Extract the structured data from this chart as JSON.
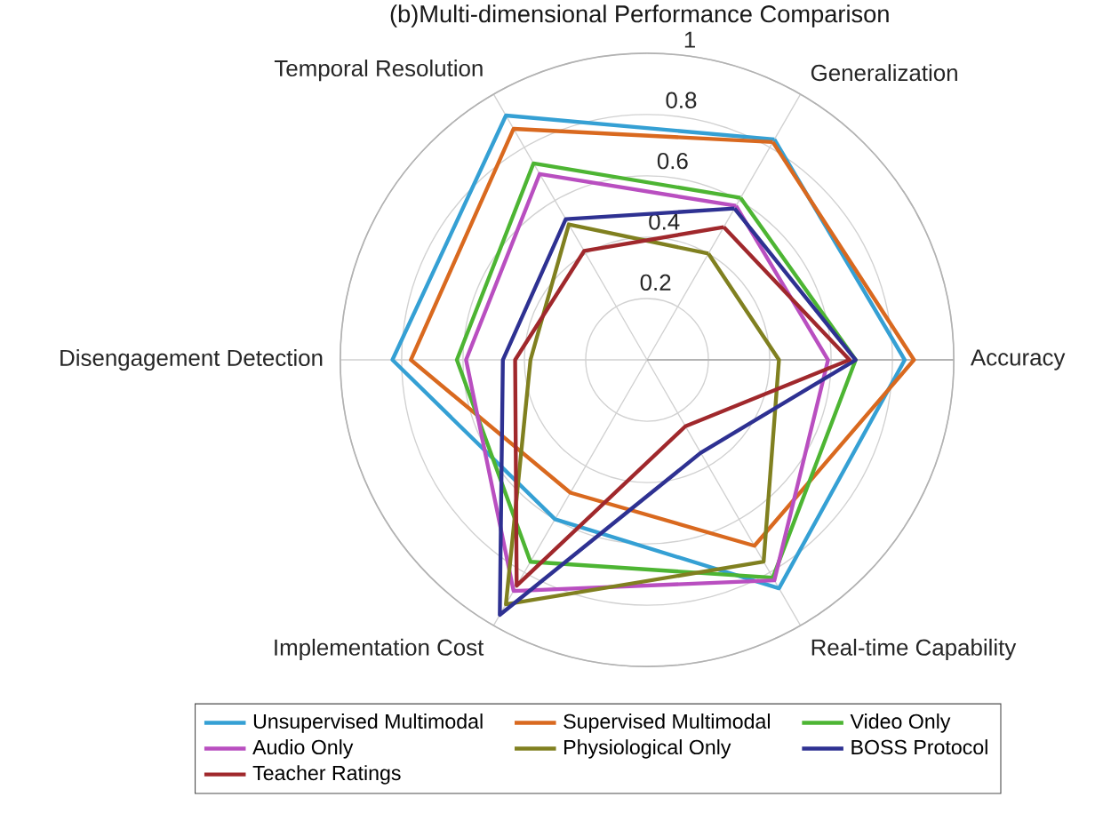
{
  "chart_data": {
    "type": "radar",
    "title": "(b)Multi-dimensional Performance Comparison",
    "categories": [
      "Generalization",
      "Accuracy",
      "Real-time Capability",
      "Implementation Cost",
      "Disengagement Detection",
      "Temporal Resolution"
    ],
    "series": [
      {
        "name": "Unsupervised Multimodal",
        "color": "#35a0d4",
        "values": [
          0.83,
          0.84,
          0.86,
          0.6,
          0.83,
          0.92
        ]
      },
      {
        "name": "Supervised Multimodal",
        "color": "#d9691f",
        "values": [
          0.82,
          0.87,
          0.7,
          0.5,
          0.77,
          0.87
        ]
      },
      {
        "name": "Video Only",
        "color": "#4db533",
        "values": [
          0.61,
          0.68,
          0.82,
          0.76,
          0.62,
          0.74
        ]
      },
      {
        "name": "Audio Only",
        "color": "#b94fc0",
        "values": [
          0.58,
          0.59,
          0.83,
          0.87,
          0.59,
          0.7
        ]
      },
      {
        "name": "Physiological Only",
        "color": "#808020",
        "values": [
          0.4,
          0.43,
          0.76,
          0.92,
          0.38,
          0.51
        ]
      },
      {
        "name": "BOSS Protocol",
        "color": "#2e3192",
        "values": [
          0.57,
          0.68,
          0.35,
          0.96,
          0.47,
          0.53
        ]
      },
      {
        "name": "Teacher Ratings",
        "color": "#a0282c",
        "values": [
          0.5,
          0.66,
          0.25,
          0.85,
          0.43,
          0.41
        ]
      }
    ],
    "ylim": [
      0,
      1
    ],
    "yticks": [
      0.2,
      0.4,
      0.6,
      0.8,
      1
    ],
    "grid": true,
    "legend": "bottom"
  }
}
